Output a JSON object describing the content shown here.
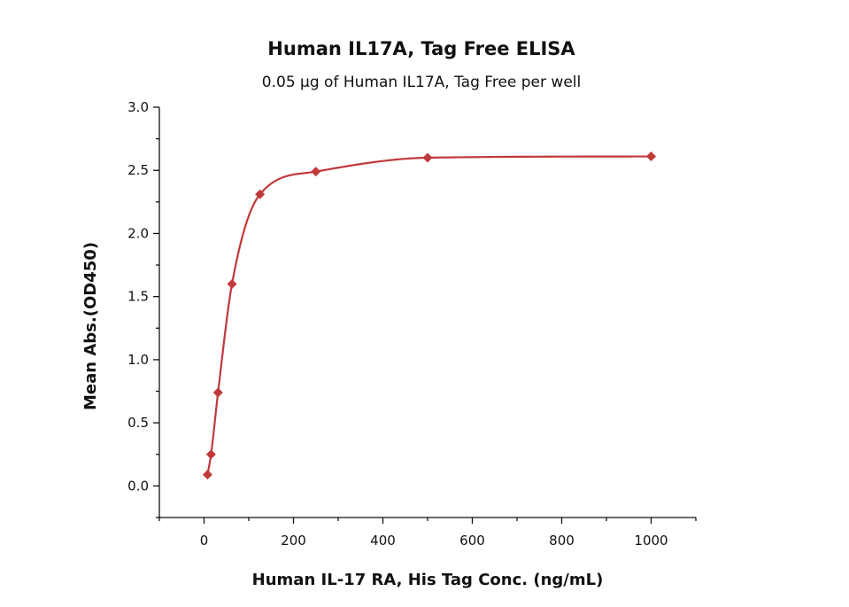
{
  "chart_data": {
    "type": "scatter",
    "title": "Human IL17A, Tag Free ELISA",
    "subtitle": "0.05 µg of Human IL17A, Tag Free per well",
    "xlabel": "Human IL-17 RA, His Tag Conc. (ng/mL)",
    "ylabel": "Mean Abs.(OD450)",
    "xlim": [
      -100,
      1100
    ],
    "ylim": [
      -0.25,
      3.0
    ],
    "x_ticks": [
      0,
      200,
      400,
      600,
      800,
      1000
    ],
    "x_tick_labels": [
      "0",
      "200",
      "400",
      "600",
      "800",
      "1000"
    ],
    "y_ticks": [
      0.0,
      0.5,
      1.0,
      1.5,
      2.0,
      2.5,
      3.0
    ],
    "y_tick_labels": [
      "0.0",
      "0.5",
      "1.0",
      "1.5",
      "2.0",
      "2.5",
      "3.0"
    ],
    "grid": false,
    "color": "#c0393b",
    "series": [
      {
        "marker": "diamond",
        "fit": "curve",
        "x": [
          7.8,
          15.6,
          31.25,
          62.5,
          125,
          250,
          500,
          1000
        ],
        "y": [
          0.09,
          0.25,
          0.74,
          1.6,
          2.31,
          2.49,
          2.6,
          2.61
        ]
      }
    ]
  }
}
